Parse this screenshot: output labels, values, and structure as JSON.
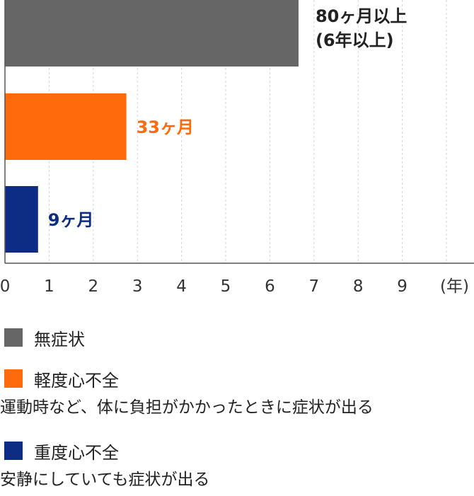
{
  "chart_data": {
    "type": "bar",
    "orientation": "horizontal",
    "xlim": [
      0,
      10.5
    ],
    "x_ticks": [
      "0",
      "1",
      "2",
      "3",
      "4",
      "5",
      "6",
      "7",
      "8",
      "9"
    ],
    "x_unit": "(年)",
    "grid": "vertical dashed",
    "bars": [
      {
        "key": "asymptomatic",
        "value": 6.65,
        "color": "#666666",
        "label_lines": [
          "80ヶ月以上",
          "(6年以上)"
        ],
        "label_color": "#222222"
      },
      {
        "key": "mild",
        "value": 2.75,
        "color": "#ff6a0d",
        "label_lines": [
          "33ヶ月"
        ],
        "label_color": "#ff6a0d"
      },
      {
        "key": "severe",
        "value": 0.75,
        "color": "#0c2d83",
        "label_lines": [
          "9ヶ月"
        ],
        "label_color": "#0c2d83"
      }
    ]
  },
  "legend": [
    {
      "color": "#666666",
      "label": "無症状",
      "desc": ""
    },
    {
      "color": "#ff6a0d",
      "label": "軽度心不全",
      "desc": "運動時など、体に負担がかかったときに症状が出る"
    },
    {
      "color": "#0c2d83",
      "label": "重度心不全",
      "desc": "安静にしていても症状が出る"
    }
  ]
}
